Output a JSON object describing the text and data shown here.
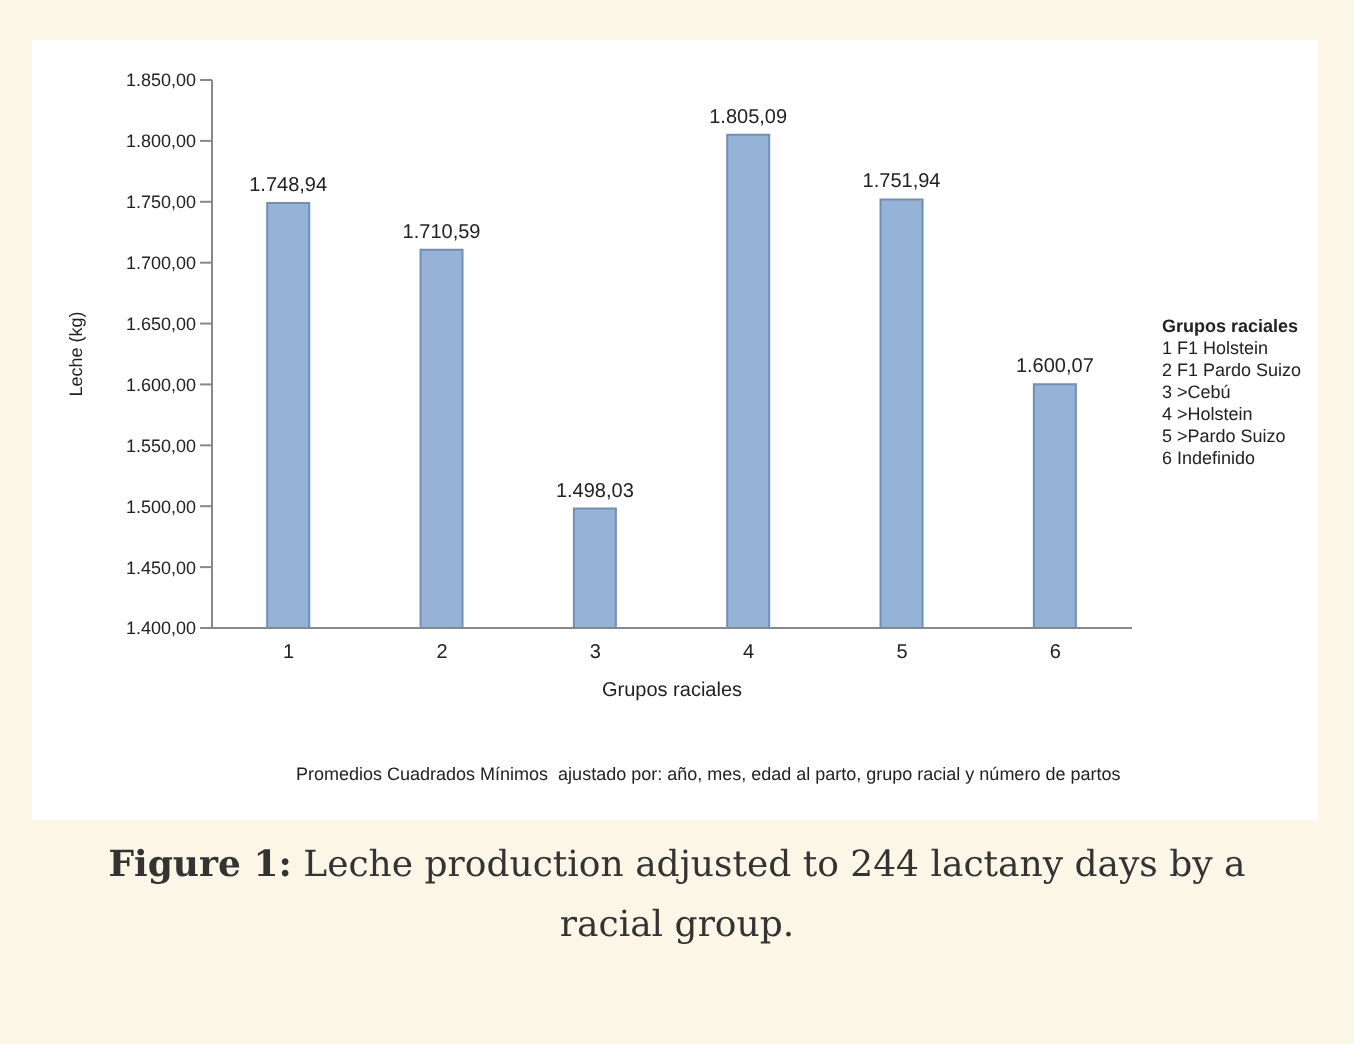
{
  "chart_data": {
    "type": "bar",
    "title": "Figure 1: Leche production adjusted to 244 lactany days by a racial group.",
    "xlabel": "Grupos raciales",
    "ylabel": "Leche (kg)",
    "legend_title": "Grupos raciales",
    "categories": [
      "1",
      "2",
      "3",
      "4",
      "5",
      "6"
    ],
    "values": [
      1748.94,
      1710.59,
      1498.03,
      1805.09,
      1751.94,
      1600.07
    ],
    "value_labels": [
      "1.748,94",
      "1.710,59",
      "1.498,03",
      "1.805,09",
      "1.751,94",
      "1.600,07"
    ],
    "color": "#95b3d7",
    "ylim": [
      1400,
      1850
    ],
    "yticks": [
      {
        "value": 1400,
        "label": "1.400,00"
      },
      {
        "value": 1450,
        "label": "1.450,00"
      },
      {
        "value": 1500,
        "label": "1.500,00"
      },
      {
        "value": 1550,
        "label": "1.550,00"
      },
      {
        "value": 1600,
        "label": "1.600,00"
      },
      {
        "value": 1650,
        "label": "1.650,00"
      },
      {
        "value": 1700,
        "label": "1.700,00"
      },
      {
        "value": 1750,
        "label": "1.750,00"
      },
      {
        "value": 1800,
        "label": "1.800,00"
      },
      {
        "value": 1850,
        "label": "1.850,00"
      }
    ],
    "annotations": [
      "1 F1 Holstein",
      "2 F1 Pardo Suizo",
      "3 >Cebú",
      "4 >Holstein",
      "5 >Pardo Suizo",
      "6 Indefinido",
      "Promedios Cuadrados Mínimos  ajustado por: año, mes, edad al parto, grupo racial y número de partos"
    ]
  }
}
